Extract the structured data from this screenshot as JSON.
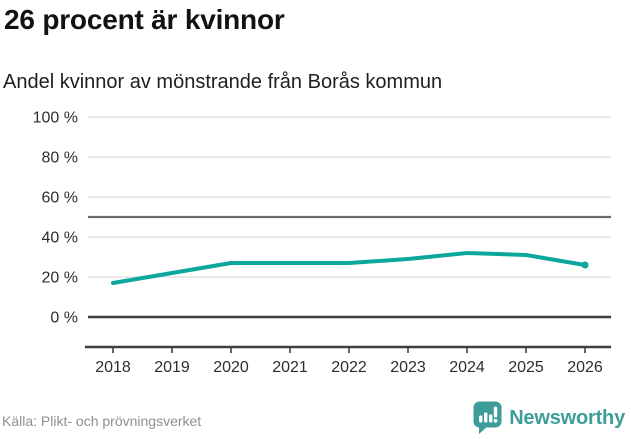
{
  "chart_data": {
    "type": "line",
    "title": "26 procent är kvinnor",
    "subtitle": "Andel kvinnor av mönstrande från Borås kommun",
    "x": [
      "2018",
      "2019",
      "2020",
      "2021",
      "2022",
      "2023",
      "2024",
      "2025",
      "2026"
    ],
    "series": [
      {
        "name": "Andel kvinnor av mönstrande",
        "values": [
          17,
          22,
          27,
          27,
          27,
          29,
          32,
          31,
          26
        ]
      }
    ],
    "ylim": [
      0,
      100
    ],
    "y_ticks": [
      0,
      20,
      40,
      60,
      80,
      100
    ],
    "y_tick_suffix": " %",
    "reference_line": 50,
    "grid": true,
    "legend": "none",
    "line_color": "#0ba79c",
    "grid_color": "#e2e2e2",
    "axis_color": "#3f3f3f",
    "reference_line_color": "#6a6a6a"
  },
  "footer": {
    "source": "Källa: Plikt- och prövningsverket",
    "brand": "Newsworthy",
    "brand_color": "#3d9e99"
  }
}
